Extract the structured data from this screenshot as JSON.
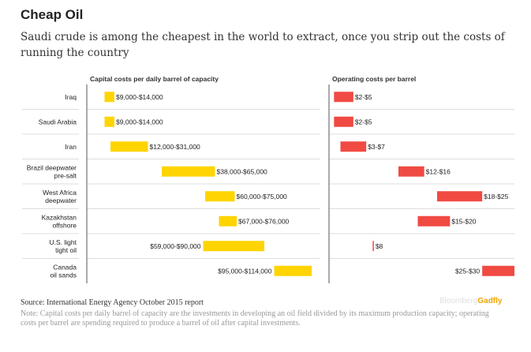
{
  "title": "Cheap Oil",
  "subtitle": "Saudi crude is among the cheapest in the world to extract, once you strip out the costs of running the country",
  "chart_data": {
    "type": "range-bar",
    "categories": [
      [
        "Iraq"
      ],
      [
        "Saudi Arabia"
      ],
      [
        "Iran"
      ],
      [
        "Brazil deepwater",
        "pre-salt"
      ],
      [
        "West Africa",
        "deepwater"
      ],
      [
        "Kazakhstan",
        "offshore"
      ],
      [
        "U.S. light",
        "tight oil"
      ],
      [
        "Canada",
        "oil sands"
      ]
    ],
    "panels": [
      {
        "name": "capital",
        "title": "Capital costs per daily barrel of capacity",
        "color": "#ffd400",
        "xlim": [
          0,
          120000
        ],
        "ranges": [
          [
            9000,
            14000
          ],
          [
            9000,
            14000
          ],
          [
            12000,
            31000
          ],
          [
            38000,
            65000
          ],
          [
            60000,
            75000
          ],
          [
            67000,
            76000
          ],
          [
            59000,
            90000
          ],
          [
            95000,
            114000
          ]
        ],
        "labels": [
          "$9,000-$14,000",
          "$9,000-$14,000",
          "$12,000-$31,000",
          "$38,000-$65,000",
          "$60,000-$75,000",
          "$67,000-$76,000",
          "$59,000-$90,000",
          "$95,000-$114,000"
        ]
      },
      {
        "name": "operating",
        "title": "Operating costs per barrel",
        "color": "#f04a42",
        "xlim": [
          0,
          30
        ],
        "ranges": [
          [
            2,
            5
          ],
          [
            2,
            5
          ],
          [
            3,
            7
          ],
          [
            12,
            16
          ],
          [
            18,
            25
          ],
          [
            15,
            20
          ],
          [
            8,
            8
          ],
          [
            25,
            30
          ]
        ],
        "labels": [
          "$2-$5",
          "$2-$5",
          "$3-$7",
          "$12-$16",
          "$18-$25",
          "$15-$20",
          "$8",
          "$25-$30"
        ]
      }
    ]
  },
  "source": "Source: International Energy Agency October 2015 report",
  "note": "Note: Capital costs per daily barrel of capacity are the investments in developing an oil field divided by its maximum production capacity; operating costs per barrel are spending required to produce a barrel of oil after capital investments.",
  "brand": {
    "part1": "Bloomberg",
    "part2": "Gadfly"
  },
  "colors": {
    "capital": "#ffd400",
    "operating": "#f04a42"
  }
}
